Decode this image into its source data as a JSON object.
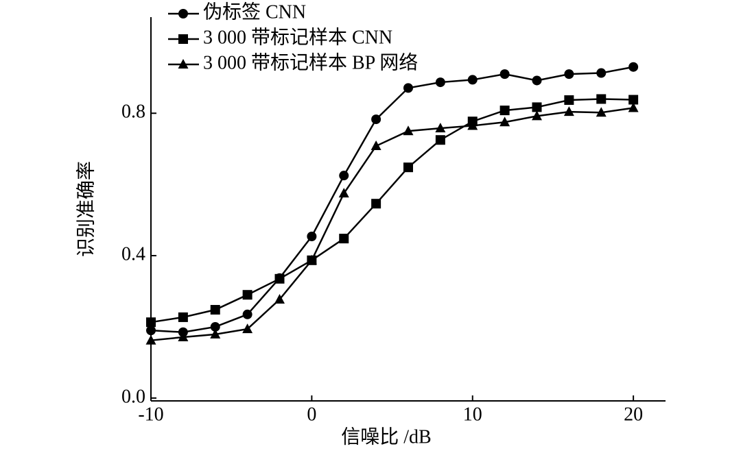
{
  "chart_data": {
    "type": "line",
    "x_label": "信噪比 /dB",
    "y_label": "识别准确率",
    "x": [
      -10,
      -8,
      -6,
      -4,
      -2,
      0,
      2,
      4,
      6,
      8,
      10,
      12,
      14,
      16,
      18,
      20
    ],
    "series": [
      {
        "name": "伪标签 CNN",
        "color": "#000000",
        "marker": "circle",
        "values": [
          0.19,
          0.185,
          0.2,
          0.235,
          0.337,
          0.454,
          0.625,
          0.783,
          0.871,
          0.887,
          0.894,
          0.91,
          0.892,
          0.91,
          0.913,
          0.93
        ]
      },
      {
        "name": "3 000 带标记样本 CNN",
        "color": "#000000",
        "marker": "square",
        "values": [
          0.213,
          0.227,
          0.248,
          0.29,
          0.335,
          0.387,
          0.448,
          0.546,
          0.648,
          0.725,
          0.777,
          0.808,
          0.817,
          0.837,
          0.84,
          0.838
        ]
      },
      {
        "name": "3 000 带标记样本 BP 网络",
        "color": "#000000",
        "marker": "triangle",
        "values": [
          0.162,
          0.171,
          0.179,
          0.194,
          0.277,
          0.387,
          0.575,
          0.708,
          0.75,
          0.758,
          0.765,
          0.775,
          0.792,
          0.804,
          0.802,
          0.815
        ]
      }
    ],
    "xlim": [
      -10,
      22
    ],
    "ylim": [
      -0.008,
      1.07
    ],
    "xticks": [
      -10,
      0,
      10,
      20
    ],
    "yticks": [
      {
        "value": 0,
        "label": "0.0"
      },
      0.4,
      0.8
    ],
    "legend": "top-left"
  }
}
